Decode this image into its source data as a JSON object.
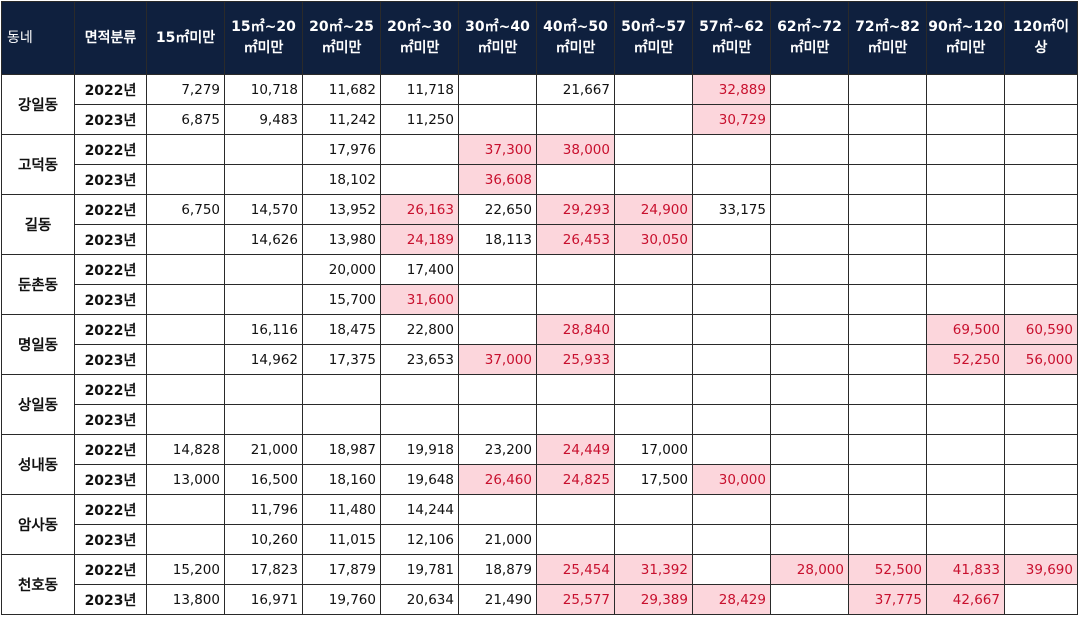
{
  "headers": [
    "동네",
    "면적분류",
    "15㎡미만",
    "15㎡~20\n㎡미만",
    "20㎡~25\n㎡미만",
    "20㎡~30\n㎡미만",
    "30㎡~40\n㎡미만",
    "40㎡~50\n㎡미만",
    "50㎡~57\n㎡미만",
    "57㎡~62\n㎡미만",
    "62㎡~72\n㎡미만",
    "72㎡~82\n㎡미만",
    "90㎡~120\n㎡미만",
    "120㎡이\n상"
  ],
  "colors": {
    "header_bg": "#0f203e",
    "header_text": "#ffffff",
    "highlight_bg": "#fcd6dc",
    "highlight_text": "#c8102e"
  },
  "groups": [
    {
      "name": "강일동",
      "rows": [
        {
          "year": "2022년",
          "cells": [
            "7,279",
            "10,718",
            "11,682",
            "11,718",
            "",
            "21,667",
            "",
            "32,889",
            "",
            "",
            "",
            ""
          ],
          "hl": [
            7
          ]
        },
        {
          "year": "2023년",
          "cells": [
            "6,875",
            "9,483",
            "11,242",
            "11,250",
            "",
            "",
            "",
            "30,729",
            "",
            "",
            "",
            ""
          ],
          "hl": [
            7
          ]
        }
      ]
    },
    {
      "name": "고덕동",
      "rows": [
        {
          "year": "2022년",
          "cells": [
            "",
            "",
            "17,976",
            "",
            "37,300",
            "38,000",
            "",
            "",
            "",
            "",
            "",
            ""
          ],
          "hl": [
            4,
            5
          ]
        },
        {
          "year": "2023년",
          "cells": [
            "",
            "",
            "18,102",
            "",
            "36,608",
            "",
            "",
            "",
            "",
            "",
            "",
            ""
          ],
          "hl": [
            4
          ]
        }
      ]
    },
    {
      "name": "길동",
      "rows": [
        {
          "year": "2022년",
          "cells": [
            "6,750",
            "14,570",
            "13,952",
            "26,163",
            "22,650",
            "29,293",
            "24,900",
            "33,175",
            "",
            "",
            "",
            ""
          ],
          "hl": [
            3,
            5,
            6
          ]
        },
        {
          "year": "2023년",
          "cells": [
            "",
            "14,626",
            "13,980",
            "24,189",
            "18,113",
            "26,453",
            "30,050",
            "",
            "",
            "",
            "",
            ""
          ],
          "hl": [
            3,
            5,
            6
          ]
        }
      ]
    },
    {
      "name": "둔촌동",
      "rows": [
        {
          "year": "2022년",
          "cells": [
            "",
            "",
            "20,000",
            "17,400",
            "",
            "",
            "",
            "",
            "",
            "",
            "",
            ""
          ],
          "hl": []
        },
        {
          "year": "2023년",
          "cells": [
            "",
            "",
            "15,700",
            "31,600",
            "",
            "",
            "",
            "",
            "",
            "",
            "",
            ""
          ],
          "hl": [
            3
          ]
        }
      ]
    },
    {
      "name": "명일동",
      "rows": [
        {
          "year": "2022년",
          "cells": [
            "",
            "16,116",
            "18,475",
            "22,800",
            "",
            "28,840",
            "",
            "",
            "",
            "",
            "69,500",
            "60,590"
          ],
          "hl": [
            5,
            10,
            11
          ]
        },
        {
          "year": "2023년",
          "cells": [
            "",
            "14,962",
            "17,375",
            "23,653",
            "37,000",
            "25,933",
            "",
            "",
            "",
            "",
            "52,250",
            "56,000"
          ],
          "hl": [
            4,
            5,
            10,
            11
          ]
        }
      ]
    },
    {
      "name": "상일동",
      "rows": [
        {
          "year": "2022년",
          "cells": [
            "",
            "",
            "",
            "",
            "",
            "",
            "",
            "",
            "",
            "",
            "",
            ""
          ],
          "hl": []
        },
        {
          "year": "2023년",
          "cells": [
            "",
            "",
            "",
            "",
            "",
            "",
            "",
            "",
            "",
            "",
            "",
            ""
          ],
          "hl": []
        }
      ]
    },
    {
      "name": "성내동",
      "rows": [
        {
          "year": "2022년",
          "cells": [
            "14,828",
            "21,000",
            "18,987",
            "19,918",
            "23,200",
            "24,449",
            "17,000",
            "",
            "",
            "",
            "",
            ""
          ],
          "hl": [
            5
          ]
        },
        {
          "year": "2023년",
          "cells": [
            "13,000",
            "16,500",
            "18,160",
            "19,648",
            "26,460",
            "24,825",
            "17,500",
            "30,000",
            "",
            "",
            "",
            ""
          ],
          "hl": [
            4,
            5,
            7
          ]
        }
      ]
    },
    {
      "name": "암사동",
      "rows": [
        {
          "year": "2022년",
          "cells": [
            "",
            "11,796",
            "11,480",
            "14,244",
            "",
            "",
            "",
            "",
            "",
            "",
            "",
            ""
          ],
          "hl": []
        },
        {
          "year": "2023년",
          "cells": [
            "",
            "10,260",
            "11,015",
            "12,106",
            "21,000",
            "",
            "",
            "",
            "",
            "",
            "",
            ""
          ],
          "hl": []
        }
      ]
    },
    {
      "name": "천호동",
      "rows": [
        {
          "year": "2022년",
          "cells": [
            "15,200",
            "17,823",
            "17,879",
            "19,781",
            "18,879",
            "25,454",
            "31,392",
            "",
            "28,000",
            "52,500",
            "41,833",
            "39,690"
          ],
          "hl": [
            5,
            6,
            8,
            9,
            10,
            11
          ]
        },
        {
          "year": "2023년",
          "cells": [
            "13,800",
            "16,971",
            "19,760",
            "20,634",
            "21,490",
            "25,577",
            "29,389",
            "28,429",
            "",
            "37,775",
            "42,667",
            ""
          ],
          "hl": [
            5,
            6,
            7,
            9,
            10
          ]
        }
      ]
    }
  ]
}
